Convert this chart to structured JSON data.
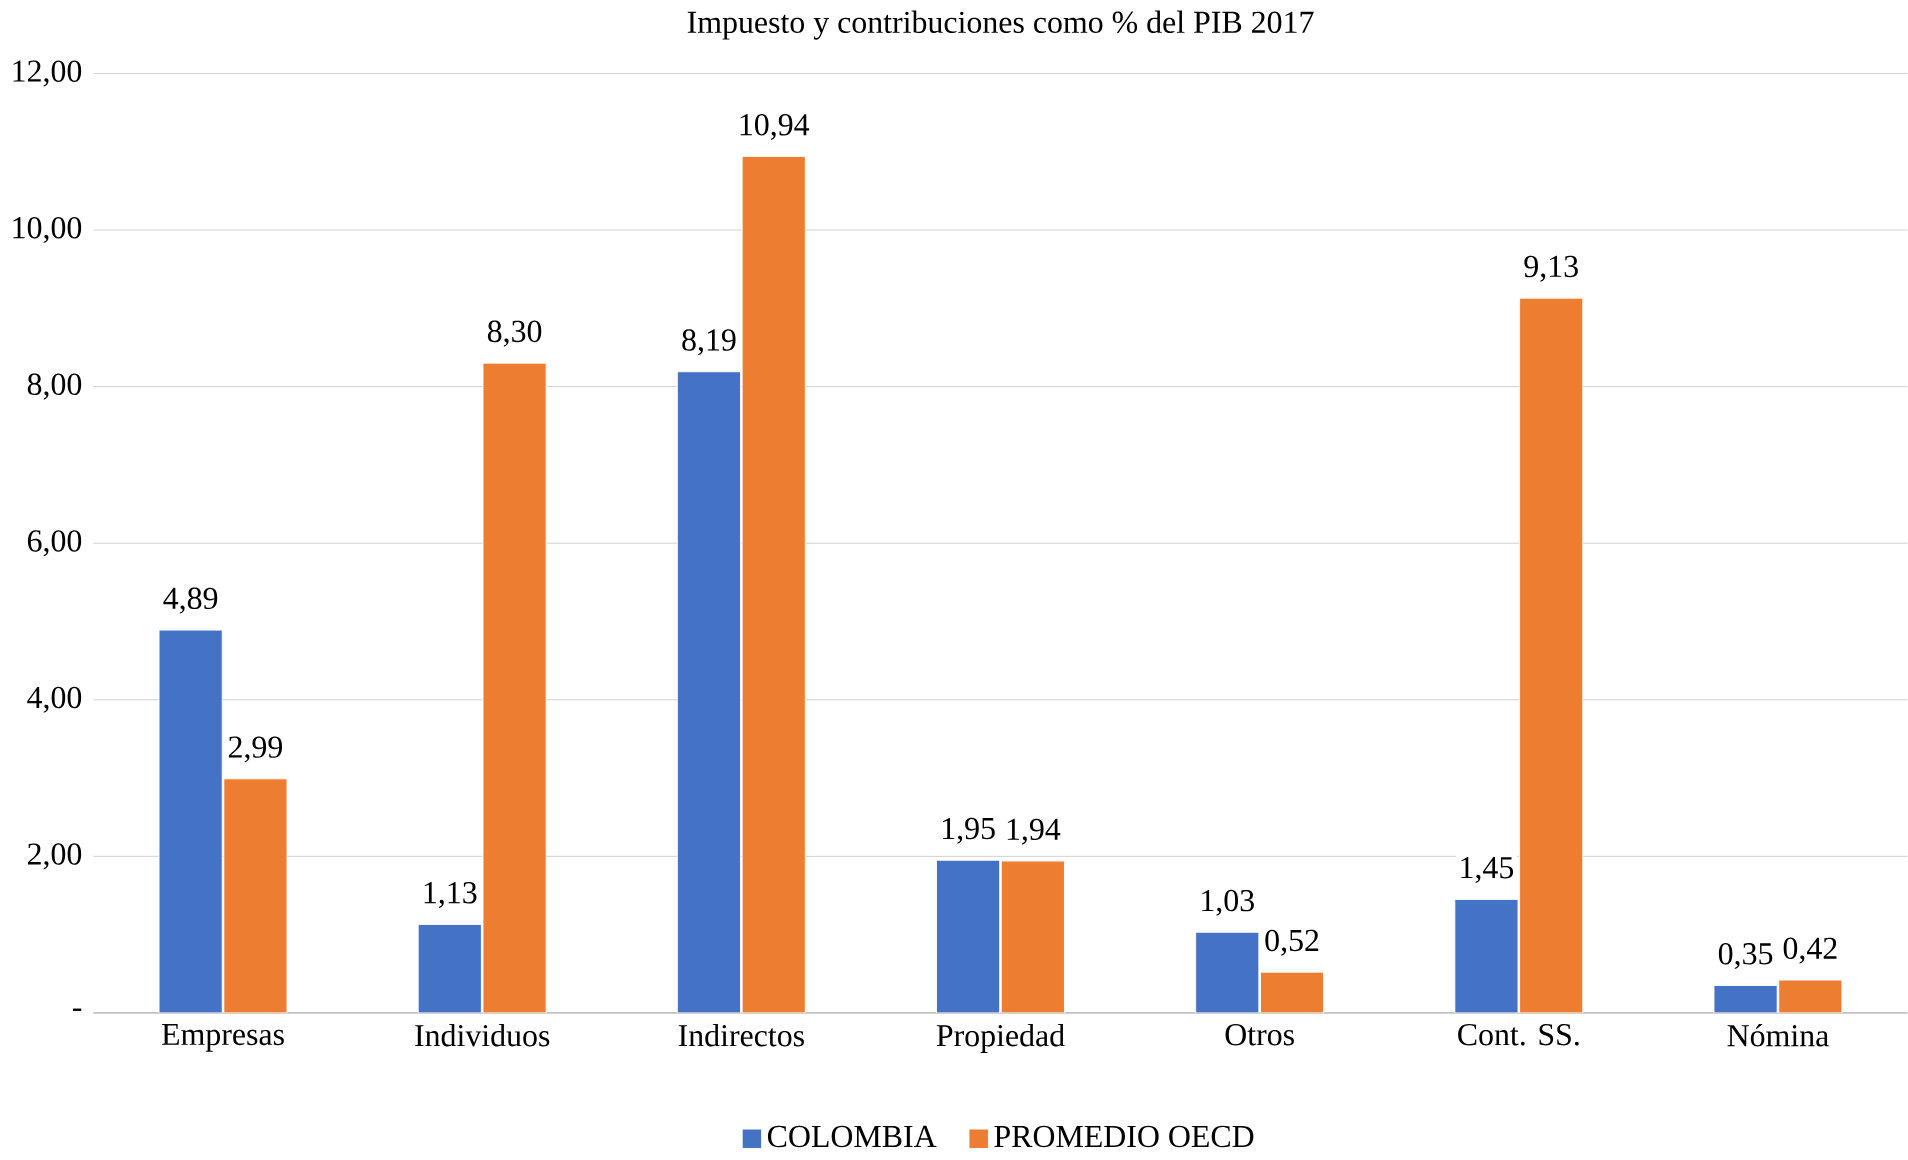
{
  "chart_data": {
    "type": "bar",
    "title": "Impuesto y contribuciones como % del PIB 2017",
    "categories": [
      "Empresas",
      "Individuos",
      "Indirectos",
      "Propiedad",
      "Otros",
      "Cont. SS.",
      "Nómina"
    ],
    "series": [
      {
        "name": "COLOMBIA",
        "color": "#4472c4",
        "values": [
          4.89,
          1.13,
          8.19,
          1.95,
          1.03,
          1.45,
          0.35
        ],
        "value_labels": [
          "4,89",
          "1,13",
          "8,19",
          "1,95",
          "1,03",
          "1,45",
          "0,35"
        ]
      },
      {
        "name": "PROMEDIO OECD",
        "color": "#ed7d31",
        "values": [
          2.99,
          8.3,
          10.94,
          1.94,
          0.52,
          9.13,
          0.42
        ],
        "value_labels": [
          "2,99",
          "8,30",
          "10,94",
          "1,94",
          "0,52",
          "9,13",
          "0,42"
        ]
      }
    ],
    "ylim": [
      0,
      12
    ],
    "yticks": [
      {
        "value": 0,
        "label": "-"
      },
      {
        "value": 2,
        "label": "2,00"
      },
      {
        "value": 4,
        "label": "4,00"
      },
      {
        "value": 6,
        "label": "6,00"
      },
      {
        "value": 8,
        "label": "8,00"
      },
      {
        "value": 10,
        "label": "10,00"
      },
      {
        "value": 12,
        "label": "12,00"
      }
    ],
    "grid": "y",
    "legend": "bottom"
  }
}
